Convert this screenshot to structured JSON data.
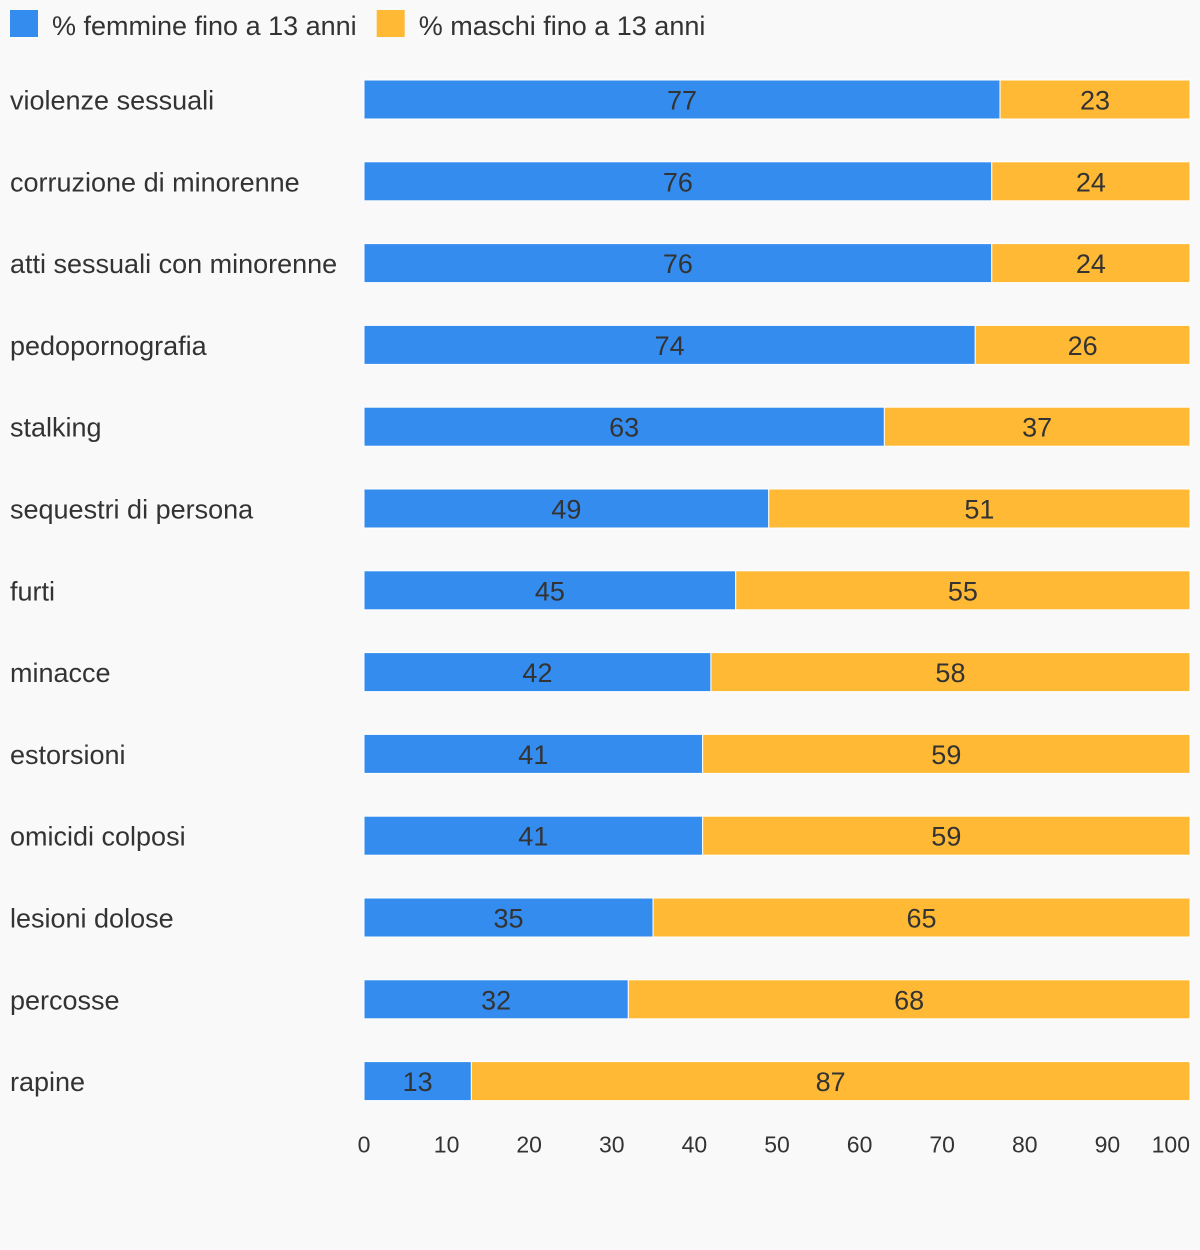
{
  "chart_data": {
    "type": "bar",
    "orientation": "horizontal",
    "stacked": true,
    "title": "",
    "xlabel": "",
    "ylabel": "",
    "xlim": [
      0,
      100
    ],
    "x_ticks": [
      "0",
      "10",
      "20",
      "30",
      "40",
      "50",
      "60",
      "70",
      "80",
      "90",
      "100"
    ],
    "grid": false,
    "legend_position": "top-left",
    "categories": [
      "violenze sessuali",
      "corruzione di minorenne",
      "atti sessuali con minorenne",
      "pedopornografia",
      "stalking",
      "sequestri di persona",
      "furti",
      "minacce",
      "estorsioni",
      "omicidi colposi",
      "lesioni dolose",
      "percosse",
      "rapine"
    ],
    "series": [
      {
        "name": "% femmine fino a 13 anni",
        "color": "#348cee",
        "values": [
          77,
          76,
          76,
          74,
          63,
          49,
          45,
          42,
          41,
          41,
          35,
          32,
          13
        ]
      },
      {
        "name": "% maschi fino a 13 anni",
        "color": "#ffb935",
        "values": [
          23,
          24,
          24,
          26,
          37,
          51,
          55,
          58,
          59,
          59,
          65,
          68,
          87
        ]
      }
    ]
  }
}
